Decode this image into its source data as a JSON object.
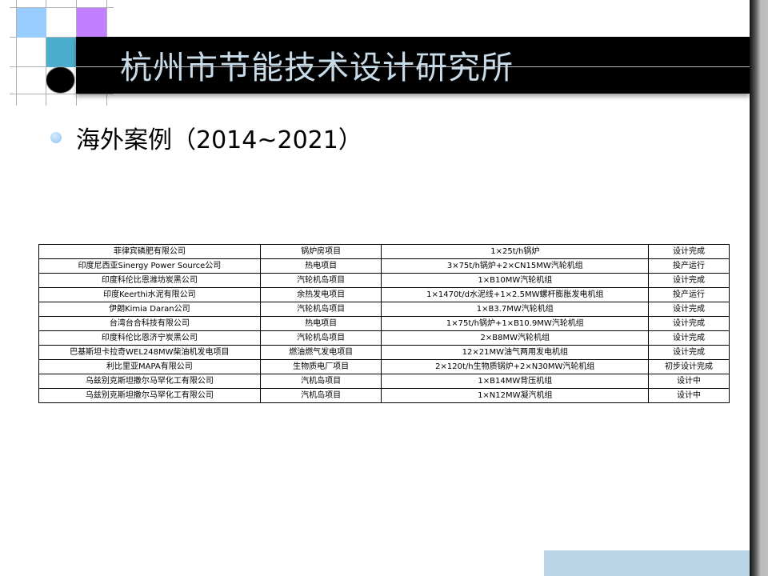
{
  "header": {
    "title": "杭州市节能技术设计研究所"
  },
  "content": {
    "bullet_text": "海外案例（2014~2021）"
  },
  "table": {
    "rows": [
      [
        "菲律宾磷肥有限公司",
        "锅炉房项目",
        "1×25t/h锅炉",
        "设计完成"
      ],
      [
        "印度尼西亚Sinergy Power Source公司",
        "热电项目",
        "3×75t/h锅炉+2×CN15MW汽轮机组",
        "投产运行"
      ],
      [
        "印度科伦比恩潍坊炭黑公司",
        "汽轮机岛项目",
        "1×B10MW汽轮机组",
        "设计完成"
      ],
      [
        "印度Keerthi水泥有限公司",
        "余热发电项目",
        "1×1470t/d水泥线+1×2.5MW螺杆膨胀发电机组",
        "投产运行"
      ],
      [
        "伊朗Kimia Daran公司",
        "汽轮机岛项目",
        "1×B3.7MW汽轮机组",
        "设计完成"
      ],
      [
        "台湾台合科技有限公司",
        "热电项目",
        "1×75t/h锅炉+1×B10.9MW汽轮机组",
        "设计完成"
      ],
      [
        "印度科伦比恩济宁炭黑公司",
        "汽轮机岛项目",
        "2×B8MW汽轮机组",
        "设计完成"
      ],
      [
        "巴基斯坦卡拉奇WEL248MW柴油机发电项目",
        "燃油燃气发电项目",
        "12×21MW油气两用发电机组",
        "设计完成"
      ],
      [
        "利比里亚MAPA有限公司",
        "生物质电厂项目",
        "2×120t/h生物质锅炉+2×N30MW汽轮机组",
        "初步设计完成"
      ],
      [
        "乌兹别克斯坦撒尔马罕化工有限公司",
        "汽机岛项目",
        "1×B14MW背压机组",
        "设计中"
      ],
      [
        "乌兹别克斯坦撒尔马罕化工有限公司",
        "汽机岛项目",
        "1×N12MW凝汽机组",
        "设计中"
      ]
    ]
  },
  "colors": {
    "light_blue": "#99ccff",
    "purple": "#c080ff",
    "teal": "#4aaecc",
    "title_text": "#c8dbe8",
    "footer_bar": "#b8d4e6"
  }
}
